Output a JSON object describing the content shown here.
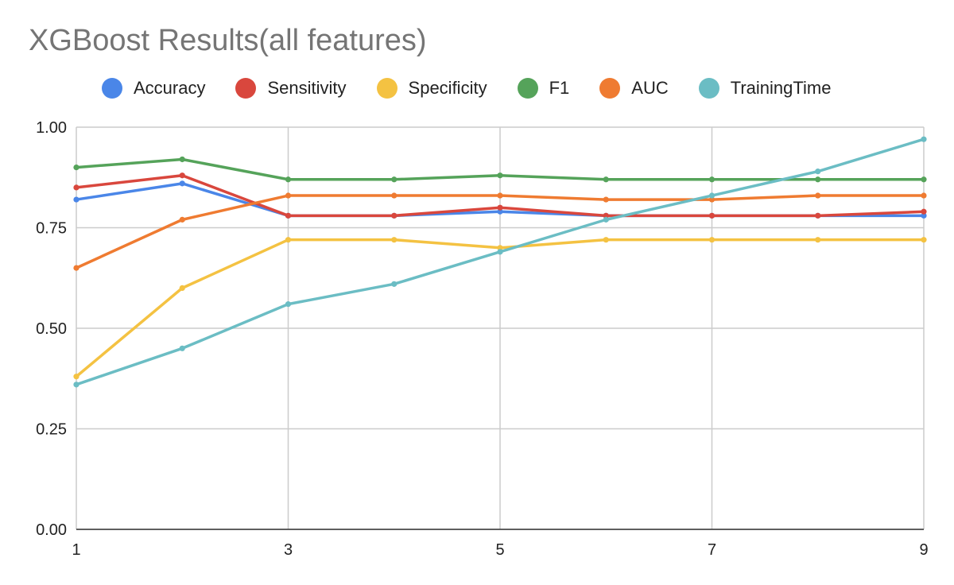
{
  "chart_data": {
    "type": "line",
    "title": "XGBoost Results(all features)",
    "xlabel": "",
    "ylabel": "",
    "x": [
      1,
      2,
      3,
      4,
      5,
      6,
      7,
      8,
      9
    ],
    "x_ticks": [
      "1",
      "3",
      "5",
      "7",
      "9"
    ],
    "y_ticks": [
      "0.00",
      "0.25",
      "0.50",
      "0.75",
      "1.00"
    ],
    "xlim": [
      1,
      9
    ],
    "ylim": [
      0,
      1
    ],
    "grid": true,
    "legend_position": "top",
    "series": [
      {
        "name": "Accuracy",
        "color": "#4a86e8",
        "values": [
          0.82,
          0.86,
          0.78,
          0.78,
          0.79,
          0.78,
          0.78,
          0.78,
          0.78
        ]
      },
      {
        "name": "Sensitivity",
        "color": "#d9473d",
        "values": [
          0.85,
          0.88,
          0.78,
          0.78,
          0.8,
          0.78,
          0.78,
          0.78,
          0.79
        ]
      },
      {
        "name": "Specificity",
        "color": "#f4c242",
        "values": [
          0.38,
          0.6,
          0.72,
          0.72,
          0.7,
          0.72,
          0.72,
          0.72,
          0.72
        ]
      },
      {
        "name": "F1",
        "color": "#55a35a",
        "values": [
          0.9,
          0.92,
          0.87,
          0.87,
          0.88,
          0.87,
          0.87,
          0.87,
          0.87
        ]
      },
      {
        "name": "AUC",
        "color": "#ef7b31",
        "values": [
          0.65,
          0.77,
          0.83,
          0.83,
          0.83,
          0.82,
          0.82,
          0.83,
          0.83
        ]
      },
      {
        "name": "TrainingTime",
        "color": "#6bbdc4",
        "values": [
          0.36,
          0.45,
          0.56,
          0.61,
          0.69,
          0.77,
          0.83,
          0.89,
          0.97
        ]
      }
    ]
  }
}
